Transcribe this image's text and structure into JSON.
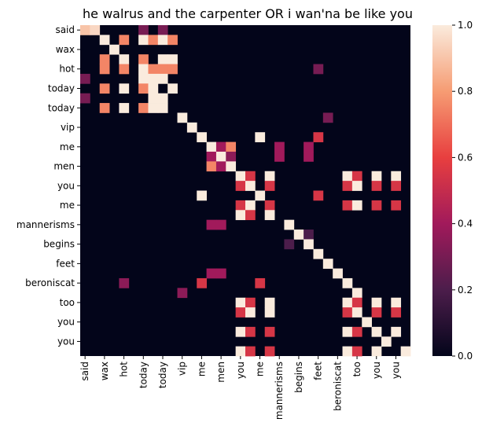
{
  "chart_data": {
    "type": "heatmap",
    "title": "he walrus and the carpenter OR i wan'na be like you",
    "xlabel": "",
    "ylabel": "",
    "n": 34,
    "tick_labels": [
      "said",
      "wax",
      "hot",
      "today",
      "today",
      "vip",
      "me",
      "men",
      "you",
      "me",
      "mannerisms",
      "begins",
      "feet",
      "beroniscat",
      "too",
      "you",
      "you"
    ],
    "tick_indices": [
      0,
      2,
      4,
      6,
      8,
      10,
      12,
      14,
      16,
      18,
      20,
      22,
      24,
      26,
      28,
      30,
      32
    ],
    "colorbar": {
      "ticks": [
        "0.0",
        "0.2",
        "0.4",
        "0.6",
        "0.8",
        "1.0"
      ],
      "range": [
        0,
        1
      ]
    },
    "colormap": [
      "#03051a",
      "#4c1d4b",
      "#a11a5b",
      "#e83f3f",
      "#f69c73",
      "#faebdd"
    ],
    "default_value": 0,
    "cells": [
      [
        0,
        0,
        0.9
      ],
      [
        0,
        1,
        0.95
      ],
      [
        0,
        6,
        0.3
      ],
      [
        0,
        8,
        0.3
      ],
      [
        1,
        2,
        1
      ],
      [
        1,
        4,
        0.75
      ],
      [
        1,
        6,
        1
      ],
      [
        1,
        7,
        0.75
      ],
      [
        1,
        8,
        1
      ],
      [
        1,
        9,
        0.75
      ],
      [
        2,
        3,
        1
      ],
      [
        3,
        2,
        0.75
      ],
      [
        3,
        4,
        1
      ],
      [
        3,
        6,
        0.75
      ],
      [
        3,
        8,
        1
      ],
      [
        3,
        9,
        1
      ],
      [
        4,
        2,
        0.75
      ],
      [
        4,
        4,
        0.75
      ],
      [
        4,
        6,
        1
      ],
      [
        4,
        7,
        0.75
      ],
      [
        4,
        8,
        0.75
      ],
      [
        4,
        9,
        0.75
      ],
      [
        4,
        24,
        0.3
      ],
      [
        5,
        0,
        0.3
      ],
      [
        5,
        6,
        1
      ],
      [
        5,
        7,
        1
      ],
      [
        5,
        8,
        1
      ],
      [
        6,
        2,
        0.75
      ],
      [
        6,
        4,
        1
      ],
      [
        6,
        6,
        0.75
      ],
      [
        6,
        7,
        1
      ],
      [
        6,
        9,
        1
      ],
      [
        7,
        0,
        0.3
      ],
      [
        7,
        7,
        1
      ],
      [
        7,
        8,
        1
      ],
      [
        8,
        2,
        0.75
      ],
      [
        8,
        4,
        1
      ],
      [
        8,
        6,
        0.75
      ],
      [
        8,
        7,
        1
      ],
      [
        8,
        8,
        1
      ],
      [
        9,
        10,
        1
      ],
      [
        9,
        25,
        0.3
      ],
      [
        10,
        11,
        1
      ],
      [
        11,
        12,
        1
      ],
      [
        11,
        18,
        1
      ],
      [
        11,
        24,
        0.55
      ],
      [
        12,
        13,
        1
      ],
      [
        12,
        14,
        0.4
      ],
      [
        12,
        15,
        0.75
      ],
      [
        12,
        20,
        0.4
      ],
      [
        12,
        23,
        0.4
      ],
      [
        13,
        13,
        0.4
      ],
      [
        13,
        14,
        1
      ],
      [
        13,
        15,
        0.35
      ],
      [
        13,
        20,
        0.4
      ],
      [
        13,
        23,
        0.4
      ],
      [
        14,
        13,
        0.75
      ],
      [
        14,
        14,
        0.4
      ],
      [
        14,
        15,
        1
      ],
      [
        15,
        16,
        1
      ],
      [
        15,
        17,
        0.55
      ],
      [
        15,
        19,
        1
      ],
      [
        15,
        27,
        1
      ],
      [
        15,
        28,
        0.55
      ],
      [
        15,
        30,
        1
      ],
      [
        15,
        32,
        1
      ],
      [
        16,
        16,
        0.55
      ],
      [
        16,
        17,
        1
      ],
      [
        16,
        19,
        0.55
      ],
      [
        16,
        27,
        0.55
      ],
      [
        16,
        28,
        1
      ],
      [
        16,
        30,
        0.55
      ],
      [
        16,
        32,
        0.55
      ],
      [
        17,
        12,
        1
      ],
      [
        17,
        18,
        1
      ],
      [
        17,
        24,
        0.55
      ],
      [
        18,
        16,
        0.55
      ],
      [
        18,
        17,
        1
      ],
      [
        18,
        19,
        0.55
      ],
      [
        18,
        27,
        0.55
      ],
      [
        18,
        28,
        1
      ],
      [
        18,
        30,
        0.55
      ],
      [
        18,
        32,
        0.55
      ],
      [
        19,
        16,
        1
      ],
      [
        19,
        17,
        0.55
      ],
      [
        19,
        19,
        1
      ],
      [
        20,
        13,
        0.4
      ],
      [
        20,
        14,
        0.4
      ],
      [
        20,
        21,
        1
      ],
      [
        21,
        22,
        1
      ],
      [
        21,
        23,
        0.2
      ],
      [
        22,
        21,
        0.2
      ],
      [
        22,
        23,
        1
      ],
      [
        23,
        24,
        1
      ],
      [
        24,
        25,
        1
      ],
      [
        25,
        13,
        0.4
      ],
      [
        25,
        14,
        0.4
      ],
      [
        25,
        26,
        1
      ],
      [
        26,
        4,
        0.35
      ],
      [
        26,
        12,
        0.55
      ],
      [
        26,
        18,
        0.55
      ],
      [
        26,
        27,
        1
      ],
      [
        27,
        10,
        0.35
      ],
      [
        27,
        28,
        1
      ],
      [
        28,
        16,
        1
      ],
      [
        28,
        17,
        0.55
      ],
      [
        28,
        19,
        1
      ],
      [
        28,
        27,
        1
      ],
      [
        28,
        28,
        0.55
      ],
      [
        28,
        30,
        1
      ],
      [
        28,
        32,
        1
      ],
      [
        29,
        16,
        0.55
      ],
      [
        29,
        17,
        1
      ],
      [
        29,
        19,
        1
      ],
      [
        29,
        27,
        0.55
      ],
      [
        29,
        28,
        1
      ],
      [
        29,
        30,
        0.55
      ],
      [
        29,
        32,
        0.55
      ],
      [
        30,
        29,
        1
      ],
      [
        31,
        16,
        1
      ],
      [
        31,
        17,
        0.55
      ],
      [
        31,
        19,
        0.55
      ],
      [
        31,
        27,
        1
      ],
      [
        31,
        28,
        0.55
      ],
      [
        31,
        30,
        1
      ],
      [
        31,
        32,
        1
      ],
      [
        32,
        31,
        1
      ],
      [
        33,
        16,
        1
      ],
      [
        33,
        17,
        0.55
      ],
      [
        33,
        19,
        0.55
      ],
      [
        33,
        27,
        1
      ],
      [
        33,
        28,
        0.55
      ],
      [
        33,
        30,
        1
      ],
      [
        33,
        33,
        1
      ]
    ]
  }
}
